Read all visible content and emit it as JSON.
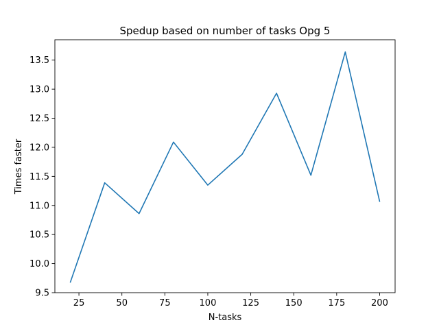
{
  "chart_data": {
    "type": "line",
    "title": "Spedup based on number of tasks Opg 5",
    "xlabel": "N-tasks",
    "ylabel": "Times faster",
    "xlim": [
      11,
      209
    ],
    "ylim": [
      9.5,
      13.85
    ],
    "xticks": [
      25,
      50,
      75,
      100,
      125,
      150,
      175,
      200
    ],
    "xtick_labels": [
      "25",
      "50",
      "75",
      "100",
      "125",
      "150",
      "175",
      "200"
    ],
    "yticks": [
      9.5,
      10.0,
      10.5,
      11.0,
      11.5,
      12.0,
      12.5,
      13.0,
      13.5
    ],
    "ytick_labels": [
      "9.5",
      "10.0",
      "10.5",
      "11.0",
      "11.5",
      "12.0",
      "12.5",
      "13.0",
      "13.5"
    ],
    "grid": false,
    "series": [
      {
        "color": "#1f77b4",
        "x": [
          20,
          40,
          60,
          80,
          100,
          120,
          140,
          160,
          180,
          200
        ],
        "y": [
          9.68,
          11.39,
          10.86,
          12.09,
          11.35,
          11.88,
          12.93,
          11.52,
          13.64,
          11.07
        ]
      }
    ]
  }
}
